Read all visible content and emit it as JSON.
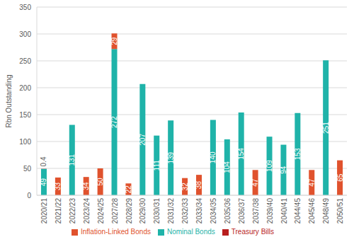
{
  "chart_data": {
    "type": "bar",
    "y_label": "Rbn Outstanding",
    "categories": [
      "2020/21",
      "2021/22",
      "2022/23",
      "2023/24",
      "2024/25",
      "2027/28",
      "2028/29",
      "2029/30",
      "2030/31",
      "2031/32",
      "2032/33",
      "2033/34",
      "2034/35",
      "2035/36",
      "2036/37",
      "2037/38",
      "2039/40",
      "2040/41",
      "2044/45",
      "2045/46",
      "2048/49",
      "2050/51"
    ],
    "series": [
      {
        "name": "Nominal Bonds",
        "color": "#1fb3a9",
        "values": [
          49,
          null,
          131,
          null,
          null,
          272,
          null,
          207,
          111,
          139,
          null,
          null,
          140,
          104,
          154,
          null,
          109,
          94,
          153,
          null,
          251,
          null
        ]
      },
      {
        "name": "Inflation-Linked Bonds",
        "color": "#e0522d",
        "values": [
          null,
          33,
          null,
          34,
          50,
          29,
          22,
          null,
          null,
          null,
          32,
          38,
          null,
          null,
          null,
          47,
          null,
          null,
          null,
          47,
          null,
          65
        ]
      },
      {
        "name": "Treasury Bills",
        "color": "#b81e1e",
        "values": [
          0.4,
          null,
          null,
          null,
          null,
          null,
          null,
          null,
          null,
          null,
          null,
          null,
          null,
          null,
          null,
          null,
          null,
          null,
          null,
          null,
          null,
          null
        ]
      }
    ],
    "ylim": [
      0,
      350
    ],
    "yticks": [
      0,
      50,
      100,
      150,
      200,
      250,
      300,
      350
    ],
    "grid": true,
    "stacked": true,
    "data_labels": true,
    "legend": "bottom"
  }
}
